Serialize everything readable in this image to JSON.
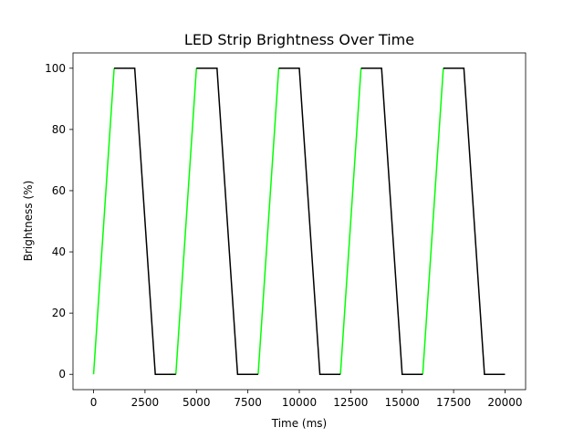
{
  "chart_data": {
    "type": "line",
    "title": "LED Strip Brightness Over Time",
    "xlabel": "Time (ms)",
    "ylabel": "Brightness (%)",
    "xlim": [
      -1000,
      21000
    ],
    "ylim": [
      -5,
      105
    ],
    "x_ticks": [
      0,
      2500,
      5000,
      7500,
      10000,
      12500,
      15000,
      17500,
      20000
    ],
    "y_ticks": [
      0,
      20,
      40,
      60,
      80,
      100
    ],
    "grid": false,
    "legend": "none",
    "series": [
      {
        "color": "#00ff00",
        "segments": [
          [
            [
              0,
              0
            ],
            [
              1000,
              100
            ]
          ],
          [
            [
              4000,
              0
            ],
            [
              5000,
              100
            ]
          ],
          [
            [
              8000,
              0
            ],
            [
              9000,
              100
            ]
          ],
          [
            [
              12000,
              0
            ],
            [
              13000,
              100
            ]
          ],
          [
            [
              16000,
              0
            ],
            [
              17000,
              100
            ]
          ]
        ]
      },
      {
        "color": "#000000",
        "segments": [
          [
            [
              1000,
              100
            ],
            [
              2000,
              100
            ],
            [
              3000,
              0
            ],
            [
              4000,
              0
            ]
          ],
          [
            [
              5000,
              100
            ],
            [
              6000,
              100
            ],
            [
              7000,
              0
            ],
            [
              8000,
              0
            ]
          ],
          [
            [
              9000,
              100
            ],
            [
              10000,
              100
            ],
            [
              11000,
              0
            ],
            [
              12000,
              0
            ]
          ],
          [
            [
              13000,
              100
            ],
            [
              14000,
              100
            ],
            [
              15000,
              0
            ],
            [
              16000,
              0
            ]
          ],
          [
            [
              17000,
              100
            ],
            [
              18000,
              100
            ],
            [
              19000,
              0
            ],
            [
              20000,
              0
            ]
          ]
        ]
      }
    ]
  }
}
